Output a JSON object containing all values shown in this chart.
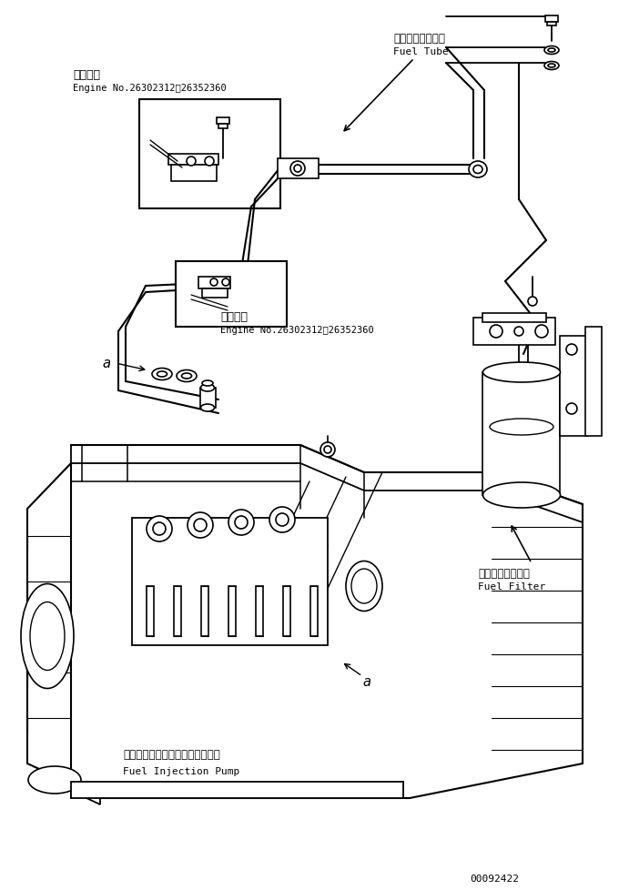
{
  "figsize": [
    6.91,
    9.79
  ],
  "dpi": 100,
  "bg_color": "#ffffff",
  "part_number": "00092422",
  "labels": {
    "fuel_tube_jp": "フェエルチューブ",
    "fuel_tube_en": "Fuel Tube",
    "fuel_filter_jp": "フェエルフィルタ",
    "fuel_filter_en": "Fuel Filter",
    "fuel_pump_jp": "フェエルインジェクションポンプ",
    "fuel_pump_en": "Fuel Injection Pump",
    "applicable_jp1": "適用号機",
    "applicable_en1": "Engine No.26302312～26352360",
    "applicable_jp2": "適用号機",
    "applicable_en2": "Engine No.26302312～26352360",
    "label_a": "a"
  },
  "line_color": "#000000",
  "text_color": "#000000"
}
